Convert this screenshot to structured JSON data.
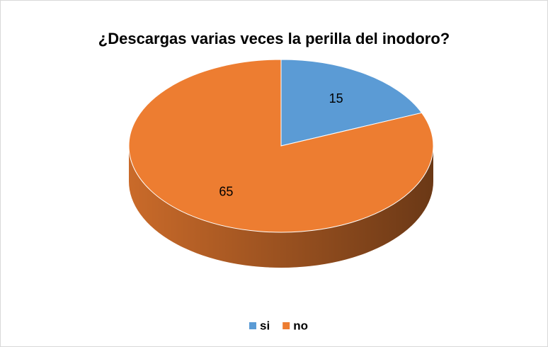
{
  "chart_data": {
    "type": "pie",
    "title": "¿Descargas varias veces la perilla del inodoro?",
    "categories": [
      "si",
      "no"
    ],
    "values": [
      15,
      65
    ],
    "colors": [
      "#5b9bd5",
      "#ed7d31"
    ],
    "legend": "bottom"
  }
}
